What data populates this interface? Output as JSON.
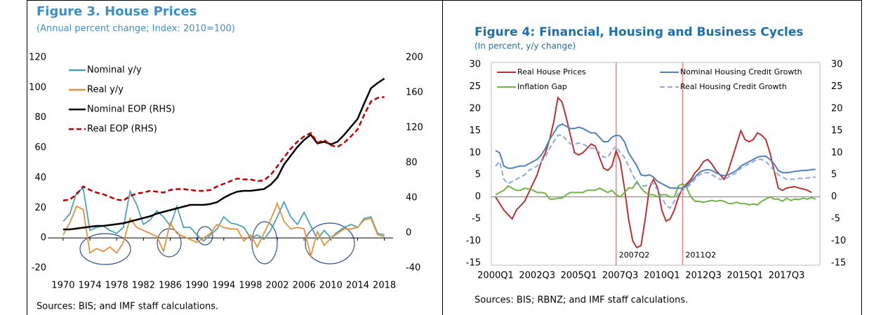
{
  "chart_data": [
    {
      "type": "line",
      "title": "Figure 3. House Prices",
      "subtitle": "(Annual percent change; Index: 2010=100)",
      "x": [
        1970,
        1971,
        1972,
        1973,
        1974,
        1975,
        1976,
        1977,
        1978,
        1979,
        1980,
        1981,
        1982,
        1983,
        1984,
        1985,
        1986,
        1987,
        1988,
        1989,
        1990,
        1991,
        1992,
        1993,
        1994,
        1995,
        1996,
        1997,
        1998,
        1999,
        2000,
        2001,
        2002,
        2003,
        2004,
        2005,
        2006,
        2007,
        2008,
        2009,
        2010,
        2011,
        2012,
        2013,
        2014,
        2015,
        2016,
        2017,
        2018
      ],
      "xlim": [
        1967.7,
        2019.3
      ],
      "xticks": [
        1970,
        1974,
        1978,
        1982,
        1986,
        1990,
        1994,
        1998,
        2002,
        2006,
        2010,
        2014,
        2018
      ],
      "ylim": [
        -20,
        120
      ],
      "yticks": [
        -20,
        0,
        20,
        40,
        60,
        80,
        100,
        120
      ],
      "y2lim": [
        -40,
        200
      ],
      "y2ticks": [
        -40,
        0,
        40,
        80,
        120,
        160,
        200
      ],
      "legend": "upper left",
      "series": [
        {
          "name": "Nominal y/y",
          "color": "#4aa3b8",
          "linestyle": "solid",
          "axis": "y",
          "values": [
            11,
            16,
            30,
            33,
            5,
            7,
            8,
            5,
            3,
            7,
            31,
            22,
            9,
            12,
            18,
            14,
            8,
            21,
            7,
            7,
            2,
            -2,
            2,
            6,
            14,
            10,
            9,
            7,
            0,
            2,
            -1,
            5,
            14,
            24,
            14,
            9,
            17,
            8,
            -1,
            5,
            0,
            4,
            7,
            9,
            7,
            13,
            14,
            3,
            2
          ]
        },
        {
          "name": "Real y/y",
          "color": "#e8913a",
          "linestyle": "solid",
          "axis": "y",
          "values": [
            2,
            10,
            21,
            19,
            -10,
            -7,
            -9,
            -6,
            -10,
            -3,
            13,
            7,
            5,
            3,
            1,
            -9,
            10,
            3,
            1,
            -1,
            -3,
            0,
            3,
            9,
            7,
            6,
            6,
            -2,
            2,
            -6,
            3,
            12,
            23,
            11,
            6,
            7,
            6,
            -12,
            4,
            -5,
            0,
            3,
            6,
            6,
            7,
            12,
            13,
            2,
            1
          ]
        },
        {
          "name": "Nominal EOP (RHS)",
          "color": "#000000",
          "linestyle": "solid",
          "axis": "y2",
          "values": [
            4,
            4,
            5,
            6,
            7,
            8,
            8,
            9,
            10,
            11,
            13,
            15,
            17,
            19,
            22,
            24,
            26,
            28,
            30,
            32,
            32,
            32,
            33,
            35,
            40,
            44,
            47,
            48,
            48,
            49,
            50,
            55,
            63,
            78,
            88,
            98,
            106,
            112,
            102,
            104,
            101,
            104,
            112,
            121,
            130,
            148,
            165,
            171,
            176
          ]
        },
        {
          "name": "Real EOP (RHS)",
          "color": "#c00000",
          "linestyle": "dashed",
          "axis": "y2",
          "values": [
            37,
            38,
            44,
            53,
            49,
            46,
            44,
            41,
            38,
            37,
            42,
            45,
            46,
            48,
            47,
            46,
            49,
            50,
            50,
            49,
            48,
            48,
            49,
            53,
            56,
            59,
            62,
            61,
            61,
            59,
            60,
            66,
            76,
            86,
            96,
            104,
            110,
            114,
            103,
            106,
            100,
            98,
            103,
            110,
            118,
            135,
            150,
            154,
            155
          ]
        }
      ],
      "source": "Sources: BIS; and IMF staff calculations."
    },
    {
      "type": "line",
      "title": "Figure 4: Financial, Housing and Business Cycles",
      "subtitle": "(In percent, y/y change)",
      "categories": [
        "2000Q1",
        null,
        null,
        null,
        null,
        null,
        null,
        null,
        null,
        null,
        "2002Q3",
        null,
        null,
        null,
        null,
        null,
        null,
        null,
        null,
        null,
        "2005Q1",
        null,
        null,
        null,
        null,
        null,
        null,
        null,
        null,
        null,
        "2007Q3",
        null,
        null,
        null,
        null,
        null,
        null,
        null,
        null,
        null,
        "2010Q1",
        null,
        null,
        null,
        null,
        null,
        null,
        null,
        null,
        null,
        "2012Q3",
        null,
        null,
        null,
        null,
        null,
        null,
        null,
        null,
        null,
        "2015Q1",
        null,
        null,
        null,
        null,
        null,
        null,
        null,
        null,
        null,
        "2017Q3",
        null,
        null,
        null,
        null,
        null,
        null,
        null
      ],
      "ylim": [
        -15,
        30
      ],
      "yticks": [
        -15,
        -10,
        -5,
        0,
        5,
        10,
        15,
        20,
        25,
        30
      ],
      "y2lim": [
        -15,
        30
      ],
      "y2ticks": [
        -15,
        -10,
        -5,
        0,
        5,
        10,
        15,
        20,
        25,
        30
      ],
      "legend": "upper center",
      "annotations": [
        {
          "label": "2007Q2",
          "color": "#f08080"
        },
        {
          "label": "2011Q2",
          "color": "#f08080"
        }
      ],
      "series": [
        {
          "name": "Real House Prices",
          "color": "#b83232",
          "linestyle": "solid",
          "values": [
            0,
            -1.5,
            -3,
            -4,
            -5,
            -3,
            -2,
            -1,
            1,
            3,
            5,
            8,
            10,
            13,
            17,
            22.5,
            21.5,
            18,
            14,
            10,
            9.5,
            10,
            11,
            12,
            11.5,
            9,
            6.5,
            6,
            7,
            10.5,
            8,
            2,
            -5,
            -10,
            -11.5,
            -11,
            -5,
            2,
            4,
            2,
            -3,
            -5.5,
            -5,
            -3,
            0,
            2,
            3,
            4,
            5.5,
            6.5,
            8,
            8.5,
            7.5,
            6,
            5,
            4,
            6,
            9,
            12,
            15,
            13,
            12.5,
            13,
            14.5,
            14,
            13,
            10,
            6,
            2,
            1.5,
            2,
            2.2,
            2.3,
            2,
            1.8,
            1.5,
            1,
            null
          ]
        },
        {
          "name": "Inflation Gap",
          "color": "#70b444",
          "linestyle": "solid",
          "values": [
            0.5,
            1,
            1.5,
            2.5,
            2,
            1.5,
            1.5,
            2,
            1.8,
            1.5,
            1,
            1,
            0.8,
            -0.5,
            -0.5,
            -0.3,
            -0.3,
            0.5,
            1,
            1,
            1,
            1,
            1.5,
            1.5,
            1.5,
            2,
            1.5,
            1,
            1.5,
            0.5,
            0,
            1,
            2,
            2,
            3.5,
            2,
            1,
            0.5,
            0.5,
            0,
            0.5,
            0.5,
            0,
            0,
            2.5,
            3,
            2,
            0,
            -1,
            -1,
            -1.2,
            -1,
            -0.8,
            -1,
            -0.8,
            -1,
            -1.5,
            -1.5,
            -1.2,
            -1.5,
            -1.5,
            -1.8,
            -1.6,
            -1.8,
            -1,
            -0.5,
            0,
            -0.5,
            -0.5,
            -1,
            -0.3,
            -0.8,
            -0.5,
            -0.6,
            -0.3,
            -0.5,
            -0.2,
            -0.5
          ]
        },
        {
          "name": "Nominal Housing Credit Growth",
          "color": "#4f81bd",
          "linestyle": "solid",
          "values": [
            10.5,
            10,
            7,
            6.5,
            6.5,
            6.8,
            7,
            7,
            7.5,
            8,
            8.5,
            9.5,
            11,
            13,
            14.5,
            16,
            16.5,
            16,
            15.5,
            15.5,
            15.8,
            15.5,
            15,
            14.5,
            14.5,
            13.5,
            12.5,
            12.5,
            13.5,
            14,
            13.8,
            12.5,
            10,
            8.5,
            7,
            5,
            4.8,
            5,
            4.5,
            3.5,
            3,
            2.5,
            2,
            2,
            2,
            2,
            2.5,
            3.5,
            4.5,
            5.5,
            6,
            6.2,
            6,
            5.5,
            5,
            4.8,
            5,
            5.5,
            6,
            7,
            7.5,
            8,
            8.5,
            9,
            9.2,
            9.2,
            8.5,
            7.5,
            6,
            5.5,
            5.5,
            5.6,
            5.8,
            5.9,
            6,
            6,
            6.2,
            6.2
          ]
        },
        {
          "name": "Real Housing Credit Growth",
          "color": "#8da9db",
          "linestyle": "dashed",
          "values": [
            7,
            8,
            4,
            3,
            3.5,
            4,
            4.5,
            5,
            6,
            6.5,
            7,
            8,
            9,
            11,
            12.5,
            14,
            14,
            13,
            12,
            12,
            12.2,
            12,
            11.5,
            11,
            11,
            10,
            9,
            9,
            10.5,
            11.5,
            10,
            9,
            7,
            5,
            3,
            2.5,
            2.5,
            3,
            3,
            1.5,
            0,
            -2,
            -2.5,
            -1,
            1,
            1.5,
            2,
            3,
            4,
            5,
            5.5,
            5.5,
            5,
            4.5,
            4,
            4,
            4.5,
            5,
            5.5,
            6.5,
            7,
            7.5,
            8,
            8.5,
            8.5,
            8,
            7,
            6,
            5,
            4.5,
            4,
            4,
            4,
            4.2,
            4.2,
            4.3,
            4.4,
            4.5
          ]
        }
      ],
      "source": "Sources: BIS; RBNZ; and IMF staff calculations."
    }
  ]
}
